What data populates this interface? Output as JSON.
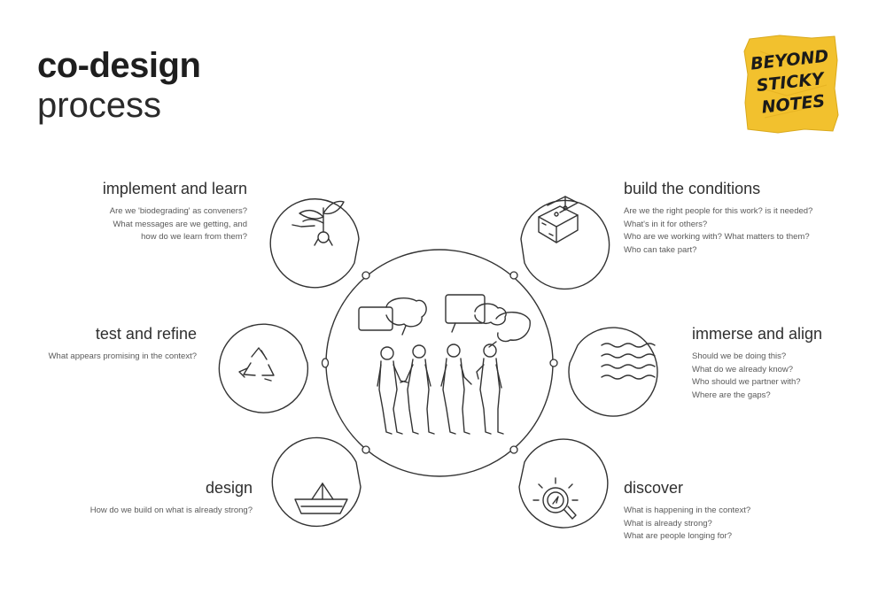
{
  "title": {
    "bold": "co-design",
    "light": "process"
  },
  "logo": {
    "lines": [
      "BEYOND",
      "STICKY",
      "NOTES"
    ],
    "color": "#f2c12e"
  },
  "accent_color": "#f2c12e",
  "line_color": "#333333",
  "stages": {
    "implement": {
      "title": "implement and learn",
      "icon": "sprout-icon",
      "questions": [
        "Are we 'biodegrading' as conveners?",
        "What messages are we getting, and",
        "how do we learn from them?"
      ]
    },
    "build": {
      "title": "build the conditions",
      "icon": "blocks-icon",
      "questions": [
        "Are we the right people for this work? is it needed?",
        "What's in it for others?",
        "Who are we working with? What matters to them?",
        "Who can take part?"
      ]
    },
    "test": {
      "title": "test and refine",
      "icon": "recycle-icon",
      "questions": [
        "What appears promising  in the context?"
      ]
    },
    "immerse": {
      "title": "immerse and align",
      "icon": "waves-icon",
      "questions": [
        "Should we be doing this?",
        "What do we already know?",
        "Who should we partner with?",
        "Where are the gaps?"
      ]
    },
    "design": {
      "title": "design",
      "icon": "paper-boat-icon",
      "questions": [
        "How do we build on what is already strong?"
      ]
    },
    "discover": {
      "title": "discover",
      "icon": "magnifier-compass-icon",
      "questions": [
        "What is happening in the context?",
        "What is already strong?",
        "What are people longing for?"
      ]
    }
  }
}
